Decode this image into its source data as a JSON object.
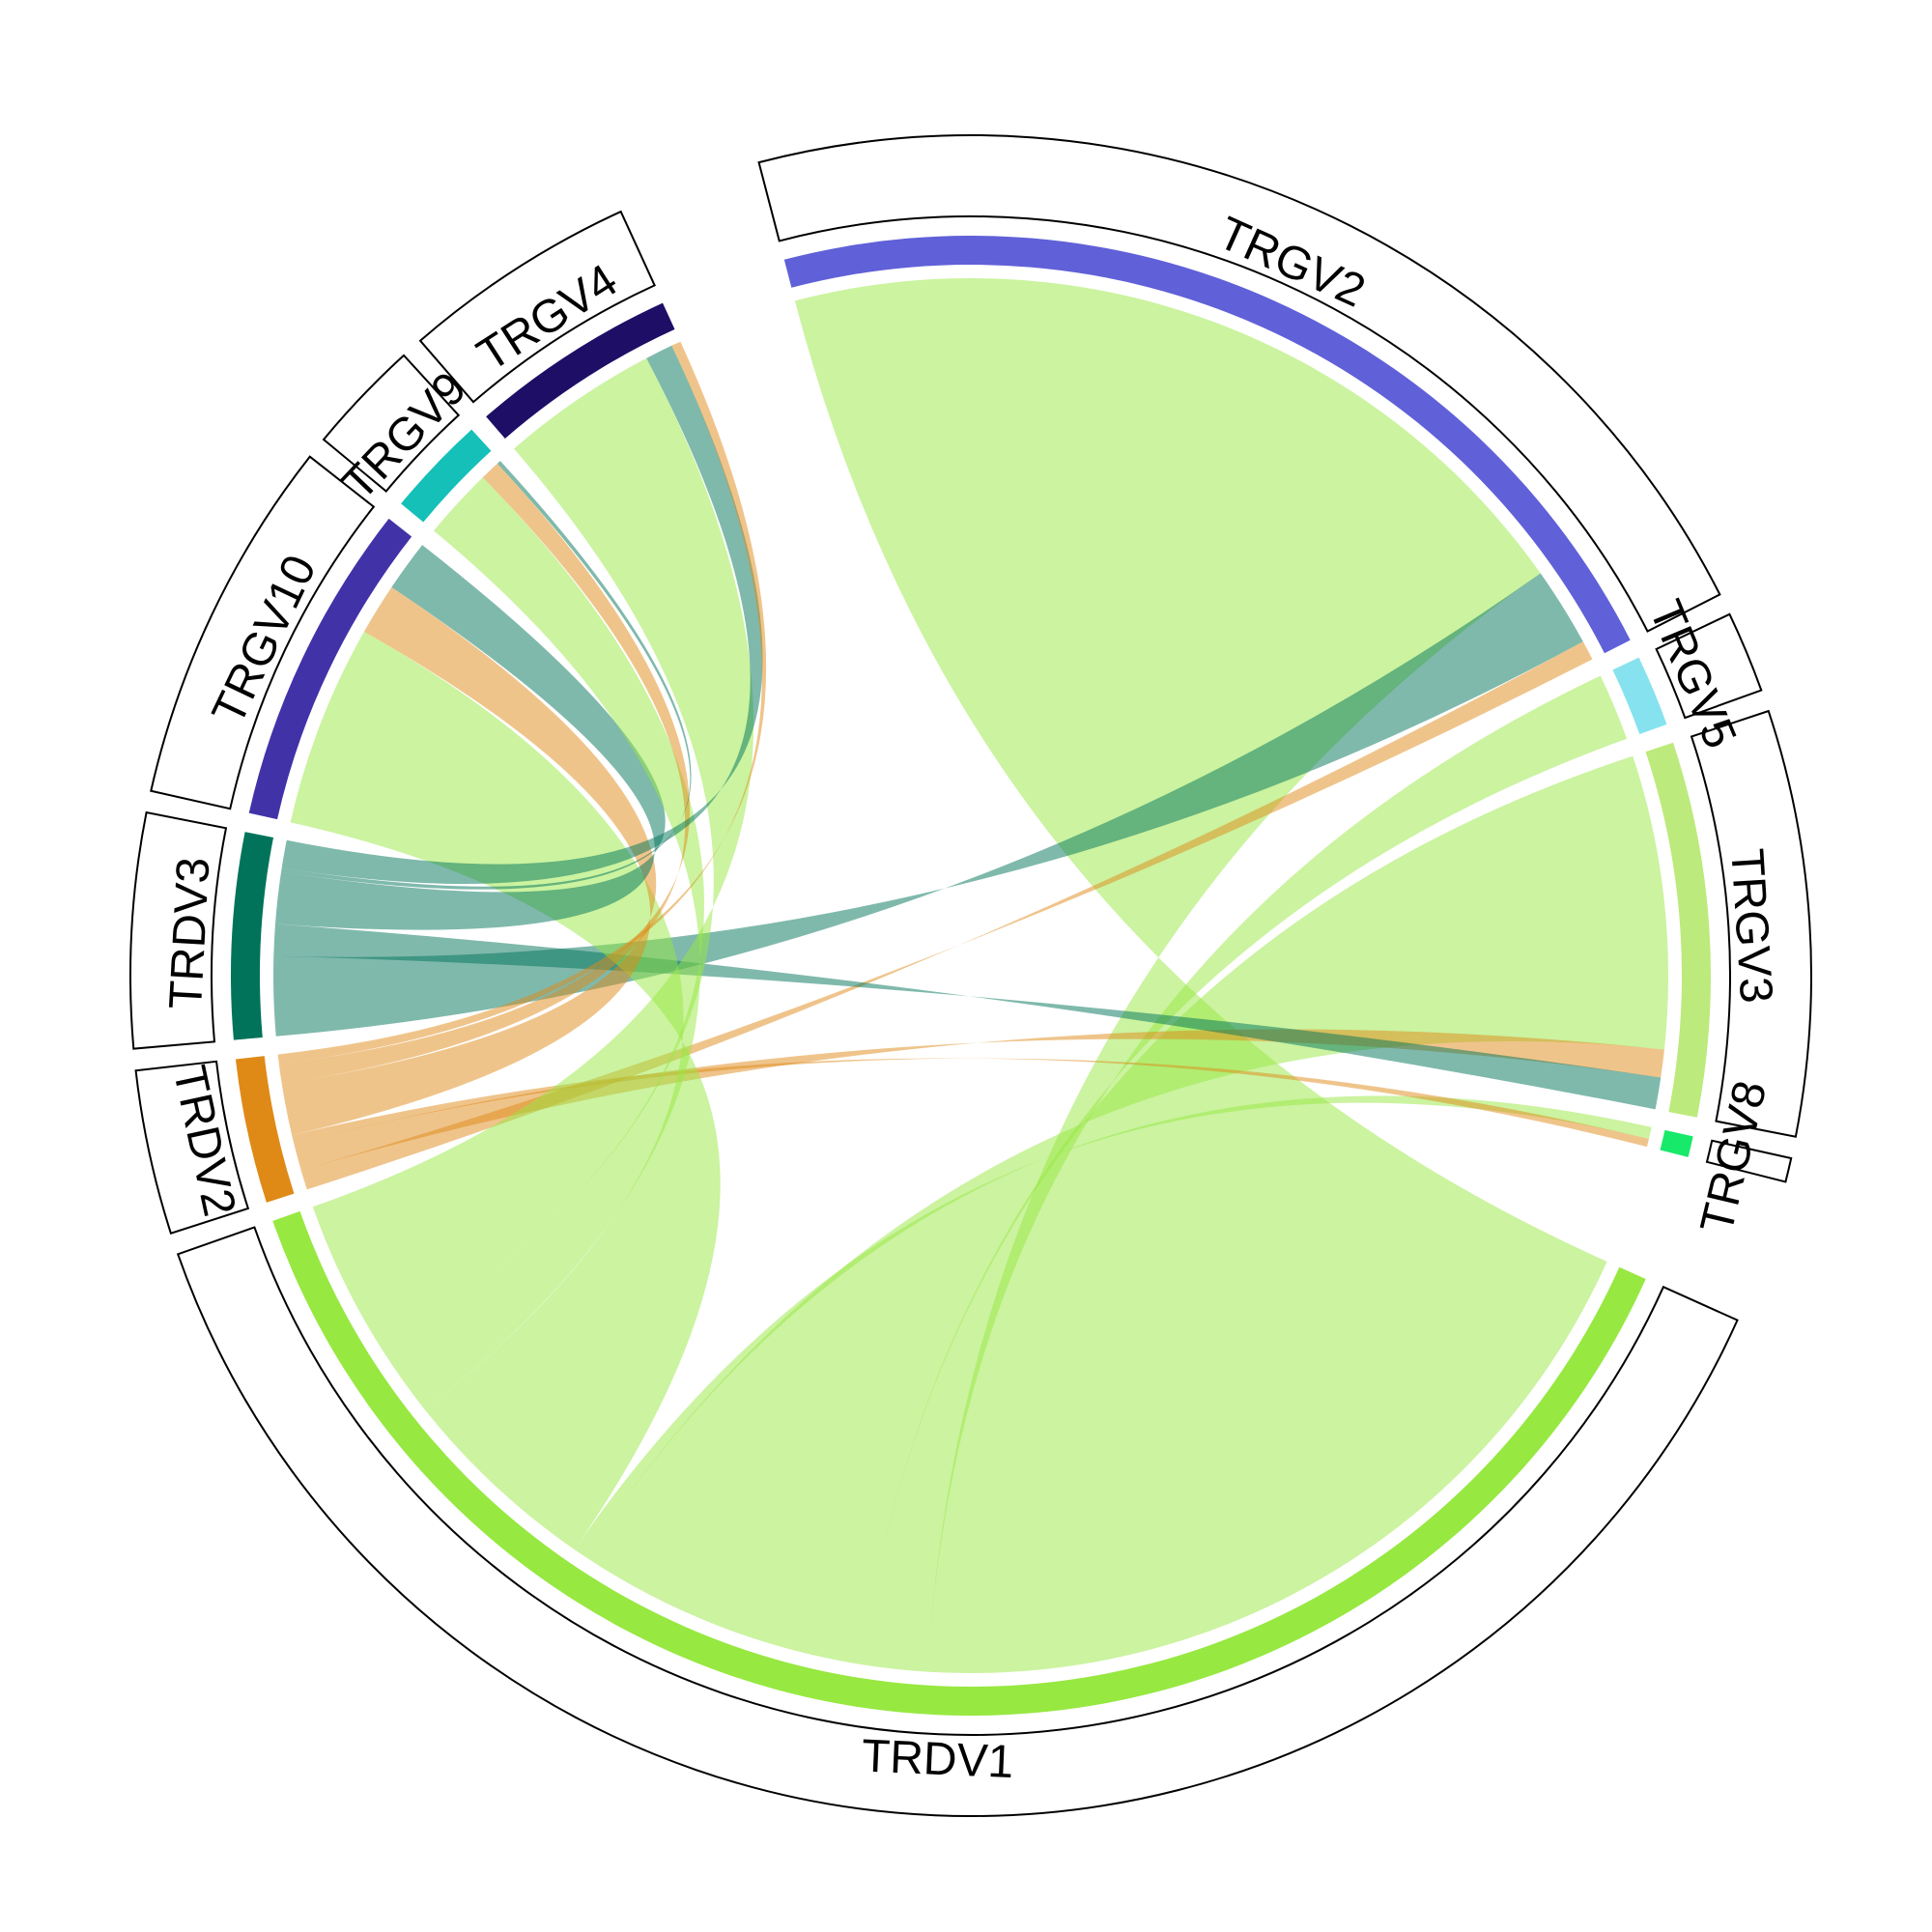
{
  "chart_data": {
    "type": "chord",
    "title": "",
    "sectors": [
      {
        "name": "TRGV2",
        "color": "#6060D8"
      },
      {
        "name": "TRGV5",
        "color": "#86E2EE"
      },
      {
        "name": "TRGV3",
        "color": "#BDEA7C"
      },
      {
        "name": "TRGV8",
        "color": "#17E96A"
      },
      {
        "name": "TRDV1",
        "color": "#97E841"
      },
      {
        "name": "TRDV2",
        "color": "#DF8A17"
      },
      {
        "name": "TRDV3",
        "color": "#00735A"
      },
      {
        "name": "TRGV10",
        "color": "#4232A8"
      },
      {
        "name": "TRGV9",
        "color": "#14C0B8"
      },
      {
        "name": "TRGV4",
        "color": "#1E0E66"
      }
    ],
    "links": [
      {
        "from": "TRGV2",
        "to": "TRDV1",
        "value": 1050
      },
      {
        "from": "TRGV2",
        "to": "TRDV3",
        "value": 100
      },
      {
        "from": "TRGV2",
        "to": "TRDV2",
        "value": 25
      },
      {
        "from": "TRGV5",
        "to": "TRDV1",
        "value": 85
      },
      {
        "from": "TRGV3",
        "to": "TRDV1",
        "value": 370
      },
      {
        "from": "TRGV3",
        "to": "TRDV2",
        "value": 35
      },
      {
        "from": "TRGV3",
        "to": "TRDV3",
        "value": 40
      },
      {
        "from": "TRGV8",
        "to": "TRDV1",
        "value": 15
      },
      {
        "from": "TRGV8",
        "to": "TRDV2",
        "value": 10
      },
      {
        "from": "TRGV10",
        "to": "TRDV1",
        "value": 255
      },
      {
        "from": "TRGV10",
        "to": "TRDV2",
        "value": 65
      },
      {
        "from": "TRGV10",
        "to": "TRDV3",
        "value": 65
      },
      {
        "from": "TRGV9",
        "to": "TRDV1",
        "value": 90
      },
      {
        "from": "TRGV9",
        "to": "TRDV2",
        "value": 25
      },
      {
        "from": "TRGV9",
        "to": "TRDV3",
        "value": 5
      },
      {
        "from": "TRGV4",
        "to": "TRDV1",
        "value": 200
      },
      {
        "from": "TRGV4",
        "to": "TRDV3",
        "value": 35
      },
      {
        "from": "TRGV4",
        "to": "TRDV2",
        "value": 12
      }
    ]
  }
}
